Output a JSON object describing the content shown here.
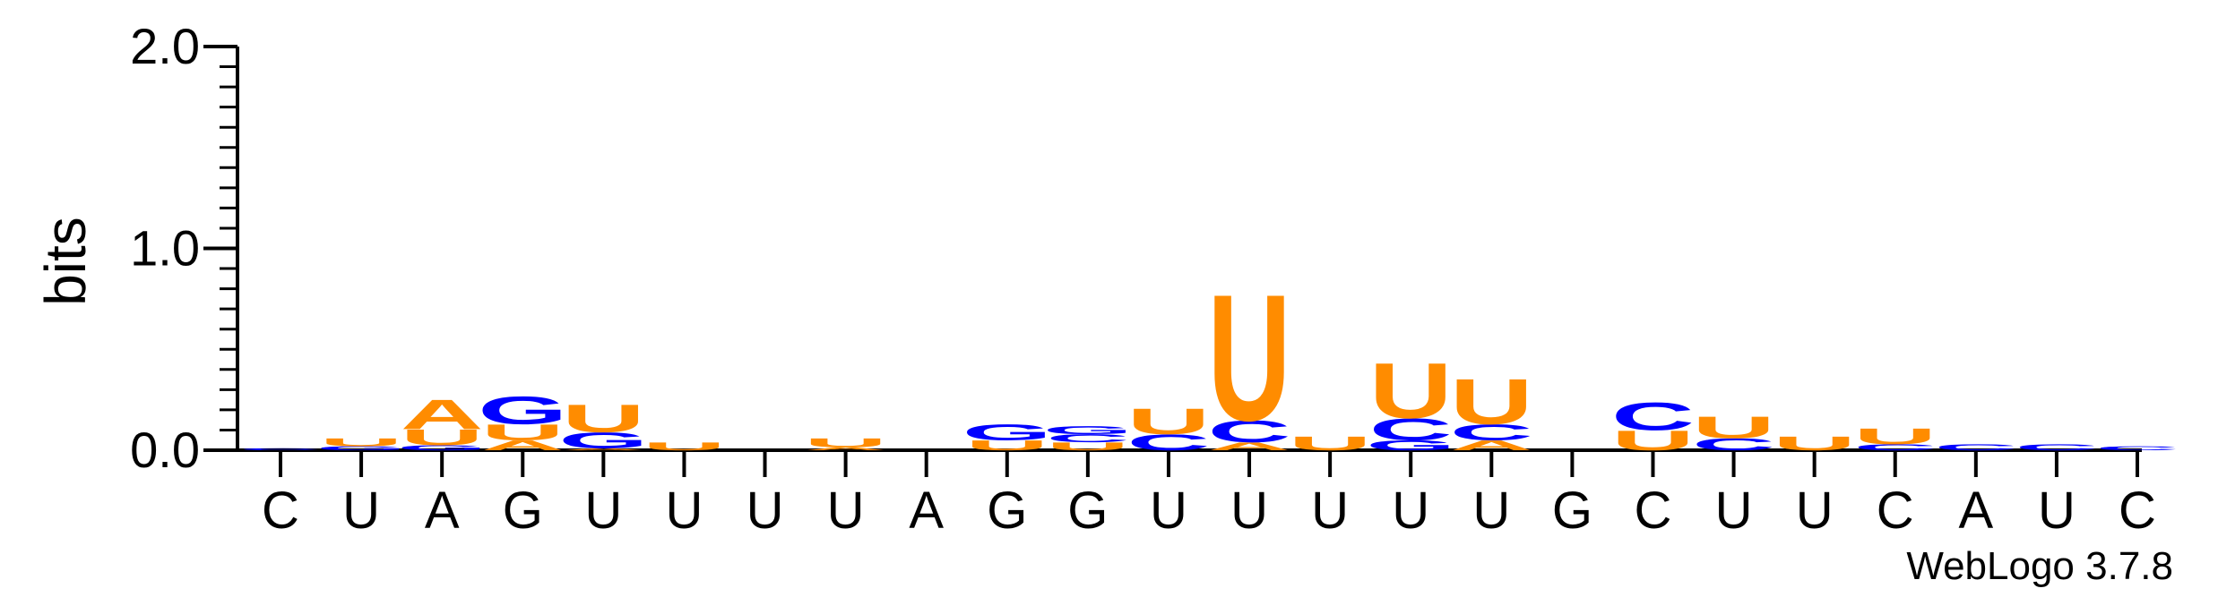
{
  "chart_data": {
    "type": "sequence-logo",
    "ylabel": "bits",
    "ylim": [
      0,
      2.0
    ],
    "yticks": [
      "0.0",
      "1.0",
      "2.0"
    ],
    "positions": [
      "C",
      "U",
      "A",
      "G",
      "U",
      "U",
      "U",
      "U",
      "A",
      "G",
      "G",
      "U",
      "U",
      "U",
      "U",
      "U",
      "G",
      "C",
      "U",
      "U",
      "C",
      "A",
      "U",
      "C"
    ],
    "colors": {
      "A": "#ff8c00",
      "U": "#ff8c00",
      "G": "#0000ff",
      "C": "#0000ff"
    },
    "stacks": [
      [
        {
          "l": "C",
          "h": 0.01
        }
      ],
      [
        {
          "l": "G",
          "h": 0.02
        },
        {
          "l": "U",
          "h": 0.04
        }
      ],
      [
        {
          "l": "G",
          "h": 0.025
        },
        {
          "l": "U",
          "h": 0.08
        },
        {
          "l": "A",
          "h": 0.15
        }
      ],
      [
        {
          "l": "A",
          "h": 0.05
        },
        {
          "l": "U",
          "h": 0.08
        },
        {
          "l": "G",
          "h": 0.14
        }
      ],
      [
        {
          "l": "A",
          "h": 0.01
        },
        {
          "l": "G",
          "h": 0.08
        },
        {
          "l": "U",
          "h": 0.14
        }
      ],
      [
        {
          "l": "U",
          "h": 0.04
        }
      ],
      [],
      [
        {
          "l": "A",
          "h": 0.015
        },
        {
          "l": "U",
          "h": 0.045
        }
      ],
      [],
      [
        {
          "l": "U",
          "h": 0.05
        },
        {
          "l": "G",
          "h": 0.08
        }
      ],
      [
        {
          "l": "U",
          "h": 0.04
        },
        {
          "l": "C",
          "h": 0.04
        },
        {
          "l": "G",
          "h": 0.04
        }
      ],
      [
        {
          "l": "C",
          "h": 0.08
        },
        {
          "l": "U",
          "h": 0.13
        }
      ],
      [
        {
          "l": "A",
          "h": 0.04
        },
        {
          "l": "C",
          "h": 0.11
        },
        {
          "l": "U",
          "h": 0.64
        }
      ],
      [
        {
          "l": "U",
          "h": 0.07
        }
      ],
      [
        {
          "l": "G",
          "h": 0.05
        },
        {
          "l": "C",
          "h": 0.11
        },
        {
          "l": "U",
          "h": 0.28
        }
      ],
      [
        {
          "l": "A",
          "h": 0.05
        },
        {
          "l": "C",
          "h": 0.08
        },
        {
          "l": "U",
          "h": 0.23
        }
      ],
      [],
      [
        {
          "l": "U",
          "h": 0.1
        },
        {
          "l": "C",
          "h": 0.14
        }
      ],
      [
        {
          "l": "C",
          "h": 0.06
        },
        {
          "l": "U",
          "h": 0.11
        }
      ],
      [
        {
          "l": "U",
          "h": 0.07
        }
      ],
      [
        {
          "l": "C",
          "h": 0.03
        },
        {
          "l": "U",
          "h": 0.08
        }
      ],
      [
        {
          "l": "C",
          "h": 0.03
        }
      ],
      [
        {
          "l": "C",
          "h": 0.03
        }
      ],
      [
        {
          "l": "C",
          "h": 0.02
        }
      ]
    ]
  },
  "credit": "WebLogo 3.7.8"
}
